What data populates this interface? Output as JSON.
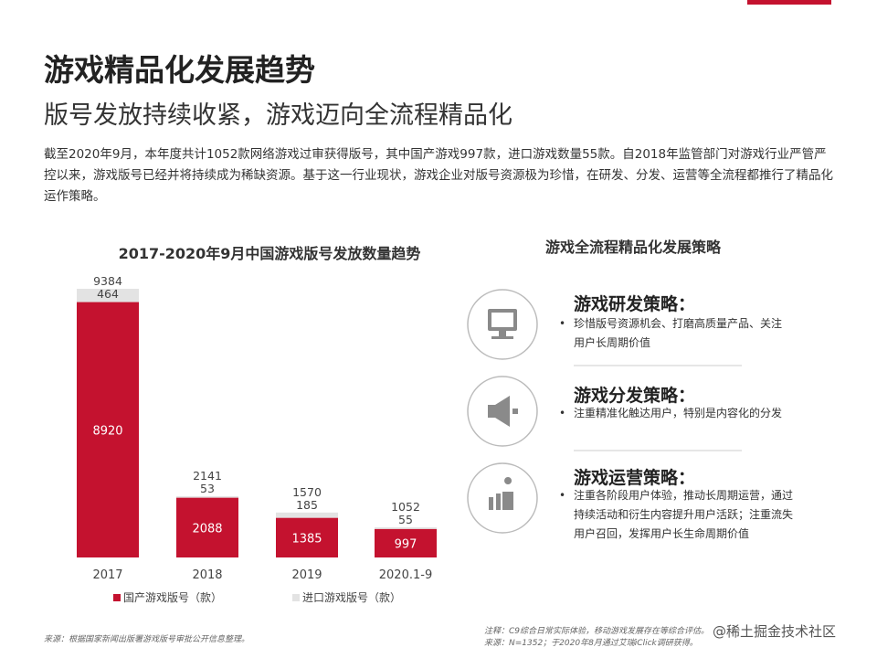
{
  "header": {
    "title": "游戏精品化发展趋势",
    "subtitle": "版号发放持续收紧，游戏迈向全流程精品化",
    "paragraph": "截至2020年9月，本年度共计1052款网络游戏过审获得版号，其中国产游戏997款，进口游戏数量55款。自2018年监管部门对游戏行业严管严控以来，游戏版号已经并将持续成为稀缺资源。基于这一行业现状，游戏企业对版号资源极为珍惜，在研发、分发、运营等全流程都推行了精品化运作策略。"
  },
  "chart_data": {
    "type": "bar",
    "stacked": true,
    "title": "2017-2020年9月中国游戏版号发放数量趋势",
    "categories": [
      "2017",
      "2018",
      "2019",
      "2020.1-9"
    ],
    "series": [
      {
        "name": "国产游戏版号（款）",
        "color": "#c4122f",
        "values": [
          8920,
          2088,
          1385,
          997
        ]
      },
      {
        "name": "进口游戏版号（款）",
        "color": "#e3e3e3",
        "values": [
          464,
          53,
          185,
          55
        ]
      }
    ],
    "totals": [
      9384,
      2141,
      1570,
      1052
    ]
  },
  "strategy": {
    "title": "游戏全流程精品化发展策略",
    "items": [
      {
        "title": "游戏研发策略：",
        "bullet": "珍惜版号资源机会、打磨高质量产品、关注用户长周期价值"
      },
      {
        "title": "游戏分发策略：",
        "bullet": "注重精准化触达用户，特别是内容化的分发"
      },
      {
        "title": "游戏运营策略：",
        "bullet": "注重各阶段用户体验，推动长周期运营，通过持续活动和衍生内容提升用户活跃；注重流失用户召回，发挥用户长生命周期价值"
      }
    ]
  },
  "footer": {
    "source": "来源：根据国家新闻出版署游戏版号审批公开信息整理。",
    "note1": "注释：C9综合日常实际体验，移动游戏发展存在等综合评估。",
    "note2": "来源：N=1352；于2020年8月通过艾瑞iClick调研获得。",
    "watermark": "@稀土掘金技术社区"
  }
}
